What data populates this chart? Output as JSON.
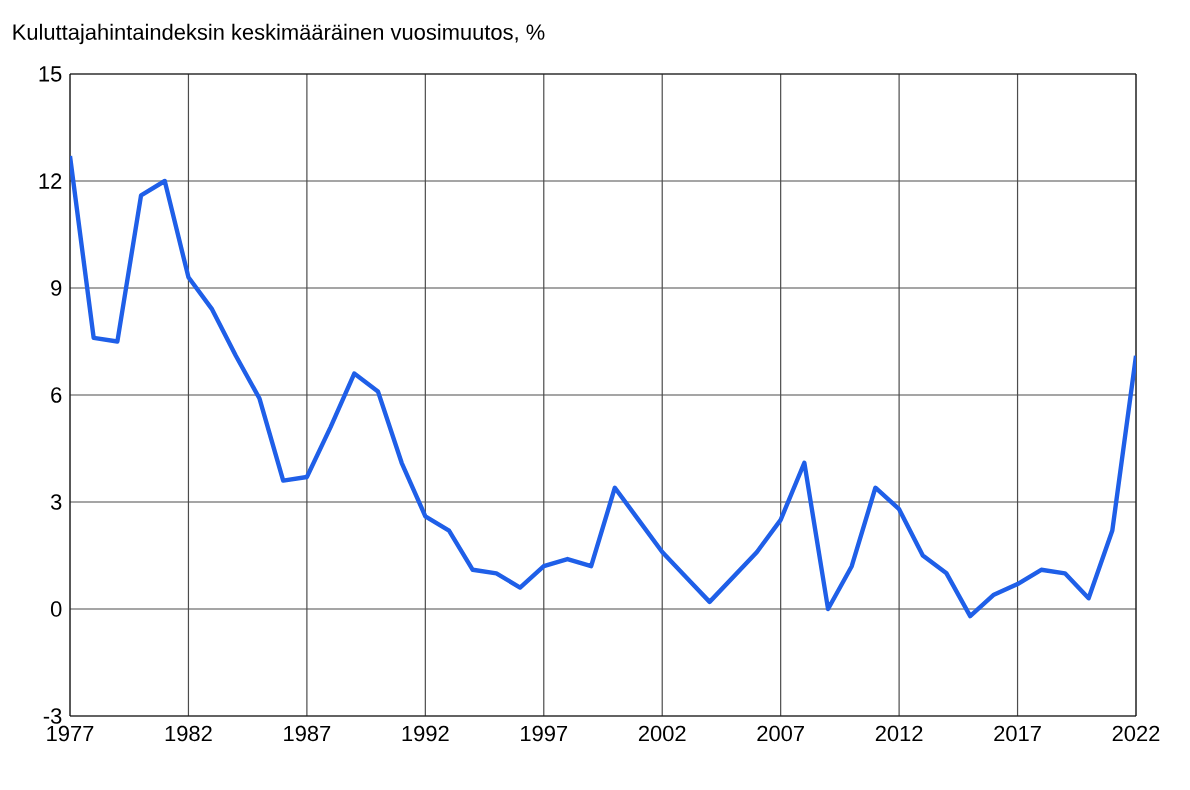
{
  "chart_data": {
    "type": "line",
    "title": "Kuluttajahintaindeksin keskimääräinen vuosimuutos, %",
    "x": [
      1977,
      1978,
      1979,
      1980,
      1981,
      1982,
      1983,
      1984,
      1985,
      1986,
      1987,
      1988,
      1989,
      1990,
      1991,
      1992,
      1993,
      1994,
      1995,
      1996,
      1997,
      1998,
      1999,
      2000,
      2001,
      2002,
      2003,
      2004,
      2005,
      2006,
      2007,
      2008,
      2009,
      2010,
      2011,
      2012,
      2013,
      2014,
      2015,
      2016,
      2017,
      2018,
      2019,
      2020,
      2021,
      2022
    ],
    "values": [
      12.7,
      7.6,
      7.5,
      11.6,
      12.0,
      9.3,
      8.4,
      7.1,
      5.9,
      3.6,
      3.7,
      5.1,
      6.6,
      6.1,
      4.1,
      2.6,
      2.2,
      1.1,
      1.0,
      0.6,
      1.2,
      1.4,
      1.2,
      3.4,
      2.5,
      1.6,
      0.9,
      0.2,
      0.9,
      1.6,
      2.5,
      4.1,
      0.0,
      1.2,
      3.4,
      2.8,
      1.5,
      1.0,
      -0.2,
      0.4,
      0.7,
      1.1,
      1.0,
      0.3,
      2.2,
      7.1
    ],
    "color": "#1f5fe8",
    "xlim": [
      1977,
      2022
    ],
    "xticks": [
      1977,
      1982,
      1987,
      1992,
      1997,
      2002,
      2007,
      2012,
      2017,
      2022
    ],
    "ylim": [
      -3,
      15
    ],
    "yticks": [
      -3,
      0,
      3,
      6,
      9,
      12,
      15
    ],
    "grid": true,
    "marker": "none",
    "line_style": "solid"
  }
}
